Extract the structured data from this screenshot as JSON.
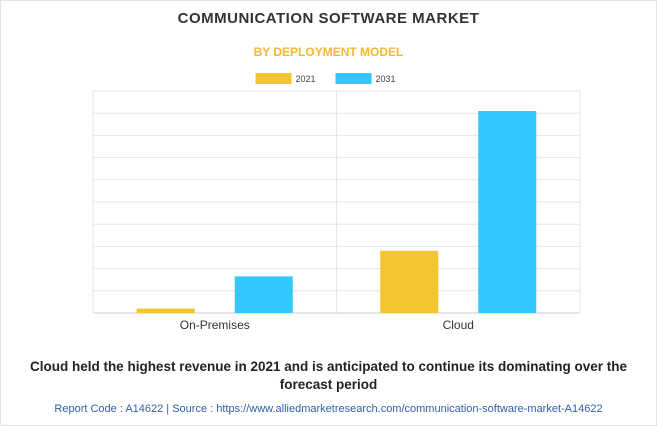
{
  "title": "COMMUNICATION SOFTWARE MARKET",
  "subtitle": "BY DEPLOYMENT MODEL",
  "caption_line1": "Cloud held the highest revenue in 2021 and is anticipated to continue its dominating over the",
  "caption_line2": "forecast period",
  "footer": "Report Code : A14622  |  Source : https://www.alliedmarketresearch.com/communication-software-market-A14622",
  "chart_data": {
    "type": "bar",
    "categories": [
      "On-Premises",
      "Cloud"
    ],
    "series": [
      {
        "name": "2021",
        "color": "#f5c431",
        "values": [
          2,
          28
        ]
      },
      {
        "name": "2031",
        "color": "#33c6ff",
        "values": [
          16.5,
          91
        ]
      }
    ],
    "ylim": [
      0,
      100
    ],
    "grid": true,
    "legend": "top-center",
    "xlabel": "",
    "ylabel": ""
  }
}
